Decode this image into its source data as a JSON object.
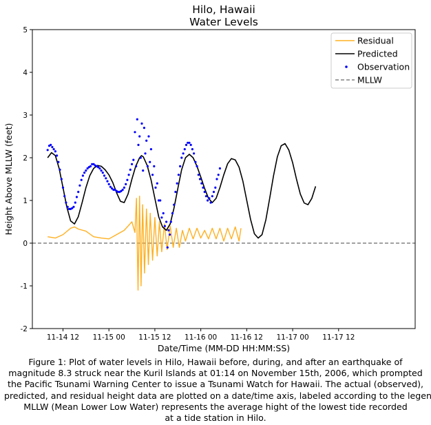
{
  "chart_data": {
    "type": "line",
    "title": [
      "Hilo, Hawaii",
      "Water Levels"
    ],
    "xlabel": "Date/Time (MM-DD HH:MM:SS)",
    "ylabel": "Height Above MLLW (feet)",
    "xlim_hours": [
      -20,
      80
    ],
    "ylim": [
      -2,
      5
    ],
    "yticks": [
      -2,
      -1,
      0,
      1,
      2,
      3,
      4,
      5
    ],
    "xticks": [
      {
        "hour": -12,
        "label": "11-14 12"
      },
      {
        "hour": 0,
        "label": "11-15 00"
      },
      {
        "hour": 12,
        "label": "11-15 12"
      },
      {
        "hour": 24,
        "label": "11-16 00"
      },
      {
        "hour": 36,
        "label": "11-16 12"
      },
      {
        "hour": 48,
        "label": "11-17 00"
      },
      {
        "hour": 60,
        "label": "11-17 12"
      }
    ],
    "grid": false,
    "legend_position": "upper-right",
    "colors": {
      "residual": "#ffb020",
      "predicted": "#000000",
      "observation": "#0000ff",
      "mllw": "#808080"
    },
    "series": [
      {
        "name": "Residual",
        "kind": "line",
        "points": [
          [
            -16,
            0.15
          ],
          [
            -14,
            0.12
          ],
          [
            -12,
            0.2
          ],
          [
            -10,
            0.35
          ],
          [
            -9,
            0.38
          ],
          [
            -8,
            0.33
          ],
          [
            -6,
            0.28
          ],
          [
            -4,
            0.15
          ],
          [
            -2,
            0.12
          ],
          [
            0,
            0.1
          ],
          [
            2,
            0.2
          ],
          [
            4,
            0.3
          ],
          [
            6,
            0.5
          ],
          [
            6.8,
            0.25
          ],
          [
            7.2,
            1.05
          ],
          [
            7.6,
            -1.1
          ],
          [
            8.0,
            1.1
          ],
          [
            8.4,
            -1.0
          ],
          [
            8.8,
            0.9
          ],
          [
            9.3,
            -0.7
          ],
          [
            9.8,
            0.8
          ],
          [
            10.3,
            -0.5
          ],
          [
            10.8,
            0.7
          ],
          [
            11.4,
            -0.4
          ],
          [
            12,
            0.6
          ],
          [
            12.6,
            -0.3
          ],
          [
            13.2,
            0.5
          ],
          [
            13.8,
            -0.2
          ],
          [
            14.5,
            0.45
          ],
          [
            15.2,
            -0.15
          ],
          [
            16,
            0.4
          ],
          [
            16.8,
            -0.1
          ],
          [
            17.6,
            0.35
          ],
          [
            18.4,
            -0.1
          ],
          [
            19.2,
            0.3
          ],
          [
            20,
            0.05
          ],
          [
            21,
            0.35
          ],
          [
            22,
            0.1
          ],
          [
            23,
            0.35
          ],
          [
            24,
            0.12
          ],
          [
            25,
            0.3
          ],
          [
            26,
            0.1
          ],
          [
            27,
            0.35
          ],
          [
            28,
            0.1
          ],
          [
            29,
            0.35
          ],
          [
            30,
            0.05
          ],
          [
            31,
            0.35
          ],
          [
            32,
            0.1
          ],
          [
            33,
            0.38
          ],
          [
            34,
            0.05
          ],
          [
            34.5,
            0.35
          ]
        ]
      },
      {
        "name": "Predicted",
        "kind": "line",
        "points": [
          [
            -16,
            2.0
          ],
          [
            -15,
            2.12
          ],
          [
            -14,
            2.05
          ],
          [
            -13,
            1.75
          ],
          [
            -12,
            1.3
          ],
          [
            -11,
            0.85
          ],
          [
            -10,
            0.52
          ],
          [
            -9,
            0.45
          ],
          [
            -8,
            0.62
          ],
          [
            -7,
            0.95
          ],
          [
            -6,
            1.3
          ],
          [
            -5,
            1.58
          ],
          [
            -4,
            1.75
          ],
          [
            -3,
            1.82
          ],
          [
            -2,
            1.8
          ],
          [
            -1,
            1.72
          ],
          [
            0,
            1.6
          ],
          [
            1,
            1.42
          ],
          [
            2,
            1.18
          ],
          [
            3,
            0.98
          ],
          [
            4,
            0.95
          ],
          [
            5,
            1.15
          ],
          [
            6,
            1.5
          ],
          [
            7,
            1.8
          ],
          [
            8,
            2.0
          ],
          [
            8.5,
            2.05
          ],
          [
            9,
            2.02
          ],
          [
            10,
            1.82
          ],
          [
            11,
            1.48
          ],
          [
            12,
            1.05
          ],
          [
            13,
            0.62
          ],
          [
            14,
            0.38
          ],
          [
            15,
            0.3
          ],
          [
            16,
            0.45
          ],
          [
            17,
            0.82
          ],
          [
            18,
            1.28
          ],
          [
            19,
            1.72
          ],
          [
            20,
            2.0
          ],
          [
            21,
            2.08
          ],
          [
            22,
            2.0
          ],
          [
            23,
            1.8
          ],
          [
            24,
            1.55
          ],
          [
            25,
            1.28
          ],
          [
            26,
            1.05
          ],
          [
            27,
            0.95
          ],
          [
            28,
            1.05
          ],
          [
            29,
            1.3
          ],
          [
            30,
            1.6
          ],
          [
            31,
            1.86
          ],
          [
            32,
            1.98
          ],
          [
            33,
            1.95
          ],
          [
            34,
            1.78
          ],
          [
            35,
            1.45
          ],
          [
            36,
            1.0
          ],
          [
            37,
            0.56
          ],
          [
            38,
            0.22
          ],
          [
            39,
            0.12
          ],
          [
            40,
            0.2
          ],
          [
            41,
            0.55
          ],
          [
            42,
            1.05
          ],
          [
            43,
            1.58
          ],
          [
            44,
            2.02
          ],
          [
            45,
            2.28
          ],
          [
            46,
            2.33
          ],
          [
            47,
            2.18
          ],
          [
            48,
            1.88
          ],
          [
            49,
            1.5
          ],
          [
            50,
            1.15
          ],
          [
            51,
            0.94
          ],
          [
            52,
            0.9
          ],
          [
            53,
            1.05
          ],
          [
            54,
            1.33
          ]
        ]
      },
      {
        "name": "Observation",
        "kind": "scatter",
        "points": [
          [
            -16,
            2.18
          ],
          [
            -15.6,
            2.28
          ],
          [
            -15.2,
            2.3
          ],
          [
            -14.8,
            2.25
          ],
          [
            -14.4,
            2.2
          ],
          [
            -14,
            2.15
          ],
          [
            -13.6,
            2.05
          ],
          [
            -13.2,
            1.9
          ],
          [
            -12.8,
            1.72
          ],
          [
            -12.4,
            1.5
          ],
          [
            -12,
            1.3
          ],
          [
            -11.6,
            1.1
          ],
          [
            -11.2,
            0.95
          ],
          [
            -10.8,
            0.85
          ],
          [
            -10.4,
            0.8
          ],
          [
            -10,
            0.8
          ],
          [
            -9.6,
            0.82
          ],
          [
            -9.2,
            0.85
          ],
          [
            -8.8,
            0.95
          ],
          [
            -8.4,
            1.08
          ],
          [
            -8,
            1.2
          ],
          [
            -7.6,
            1.35
          ],
          [
            -7.2,
            1.48
          ],
          [
            -6.8,
            1.58
          ],
          [
            -6.4,
            1.65
          ],
          [
            -6,
            1.7
          ],
          [
            -5.6,
            1.75
          ],
          [
            -5.2,
            1.78
          ],
          [
            -4.8,
            1.8
          ],
          [
            -4.4,
            1.85
          ],
          [
            -4,
            1.85
          ],
          [
            -3.6,
            1.82
          ],
          [
            -3.2,
            1.8
          ],
          [
            -2.8,
            1.78
          ],
          [
            -2.4,
            1.75
          ],
          [
            -2,
            1.7
          ],
          [
            -1.6,
            1.65
          ],
          [
            -1.2,
            1.58
          ],
          [
            -0.8,
            1.52
          ],
          [
            -0.4,
            1.45
          ],
          [
            0,
            1.38
          ],
          [
            0.4,
            1.32
          ],
          [
            0.8,
            1.28
          ],
          [
            1.2,
            1.25
          ],
          [
            1.6,
            1.25
          ],
          [
            2,
            1.22
          ],
          [
            2.4,
            1.2
          ],
          [
            2.8,
            1.2
          ],
          [
            3.2,
            1.22
          ],
          [
            3.6,
            1.25
          ],
          [
            4,
            1.3
          ],
          [
            4.4,
            1.38
          ],
          [
            4.8,
            1.48
          ],
          [
            5.2,
            1.6
          ],
          [
            5.6,
            1.72
          ],
          [
            6,
            1.85
          ],
          [
            6.4,
            1.95
          ],
          [
            6.8,
            2.6
          ],
          [
            7.1,
            1.8
          ],
          [
            7.4,
            2.9
          ],
          [
            7.7,
            2.3
          ],
          [
            8,
            2.5
          ],
          [
            8.3,
            2.0
          ],
          [
            8.6,
            2.8
          ],
          [
            8.9,
            1.7
          ],
          [
            9.2,
            2.7
          ],
          [
            9.5,
            2.1
          ],
          [
            9.8,
            2.4
          ],
          [
            10.1,
            1.8
          ],
          [
            10.4,
            2.5
          ],
          [
            10.7,
            1.9
          ],
          [
            11,
            2.2
          ],
          [
            11.4,
            1.6
          ],
          [
            11.8,
            1.8
          ],
          [
            12.2,
            1.3
          ],
          [
            12.6,
            1.4
          ],
          [
            13,
            1.0
          ],
          [
            13.4,
            1.0
          ],
          [
            13.8,
            0.6
          ],
          [
            14.2,
            0.7
          ],
          [
            14.6,
            0.4
          ],
          [
            15,
            0.5
          ],
          [
            15.3,
            -0.1
          ],
          [
            15.6,
            0.3
          ],
          [
            15.9,
            0.2
          ],
          [
            16.2,
            0.5
          ],
          [
            16.6,
            0.7
          ],
          [
            17,
            0.9
          ],
          [
            17.4,
            1.2
          ],
          [
            17.8,
            1.4
          ],
          [
            18.2,
            1.6
          ],
          [
            18.6,
            1.8
          ],
          [
            19,
            2.0
          ],
          [
            19.4,
            2.1
          ],
          [
            19.8,
            2.2
          ],
          [
            20.2,
            2.3
          ],
          [
            20.6,
            2.35
          ],
          [
            21,
            2.35
          ],
          [
            21.4,
            2.3
          ],
          [
            21.8,
            2.2
          ],
          [
            22.2,
            2.1
          ],
          [
            22.6,
            1.9
          ],
          [
            23,
            1.8
          ],
          [
            23.4,
            1.6
          ],
          [
            23.8,
            1.5
          ],
          [
            24.2,
            1.4
          ],
          [
            24.6,
            1.3
          ],
          [
            25,
            1.2
          ],
          [
            25.4,
            1.1
          ],
          [
            25.8,
            1.0
          ],
          [
            26.2,
            1.05
          ],
          [
            26.6,
            0.95
          ],
          [
            27,
            1.1
          ],
          [
            27.4,
            1.2
          ],
          [
            27.8,
            1.3
          ],
          [
            28.2,
            1.5
          ],
          [
            28.6,
            1.6
          ],
          [
            29,
            1.75
          ]
        ]
      },
      {
        "name": "MLLW",
        "kind": "hline",
        "y": 0
      }
    ]
  },
  "caption": [
    "Figure 1: Plot of water levels in Hilo, Hawaii before, during, and after an earthquake of",
    "magnitude 8.3 struck near the Kuril Islands at 01:14 on November 15th, 2006, which prompted",
    "the Pacific Tsunami Warning Center to issue a Tsunami Watch for Hawaii. The actual (observed),",
    "predicted, and residual height data are plotted on a date/time axis, labeled according to the legend.",
    "MLLW (Mean Lower Low Water) represents the average hight of the lowest tide recorded",
    "at a tide station in Hilo."
  ]
}
